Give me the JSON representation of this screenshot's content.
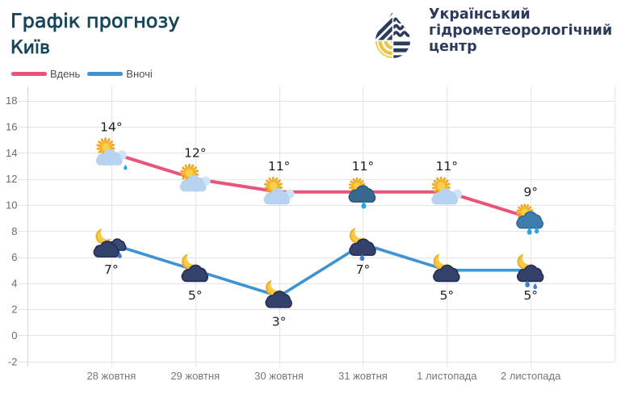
{
  "header": {
    "title": "Графік прогнозу",
    "subtitle": "Київ",
    "logo": {
      "line1": "Український",
      "line2": "гідрометеорологічний",
      "line3": "центр"
    }
  },
  "legend": {
    "day_label": "Вдень",
    "night_label": "Вночі"
  },
  "colors": {
    "day_line": "#e8547a",
    "night_line": "#3e93d2",
    "title": "#17465a",
    "logo_navy": "#2c3a5c",
    "logo_yellow": "#eec343",
    "grid": "#e4e4e4",
    "axis": "#d6d6d6"
  },
  "chart_data": {
    "type": "line",
    "title": "Графік прогнозу Київ",
    "categories": [
      "28 жовтня",
      "29 жовтня",
      "30 жовтня",
      "31 жовтня",
      "1 листопада",
      "2 листопада"
    ],
    "series": [
      {
        "name": "Вдень",
        "color": "#e8547a",
        "values": [
          14,
          12,
          11,
          11,
          11,
          9
        ],
        "labels": [
          "14°",
          "12°",
          "11°",
          "11°",
          "11°",
          "9°"
        ],
        "icons": [
          "sun-cloud-rain1",
          "sun-cloud",
          "sun-cloud",
          "sun-slatecloud-rain1",
          "sun-cloud",
          "sun-bluecloud-rain2"
        ]
      },
      {
        "name": "Вночі",
        "color": "#3e93d2",
        "values": [
          7,
          5,
          3,
          7,
          5,
          5
        ],
        "labels": [
          "7°",
          "5°",
          "3°",
          "7°",
          "5°",
          "5°"
        ],
        "icons": [
          "moon-clouds-rain1",
          "moon-cloud",
          "moon-cloud",
          "moon-cloud-rain1",
          "moon-cloud",
          "moon-cloud-rain2"
        ]
      }
    ],
    "ylim": [
      -2,
      18
    ],
    "ytick_step": 2,
    "grid": true,
    "legend_position": "top-left",
    "xlabel": "",
    "ylabel": ""
  }
}
